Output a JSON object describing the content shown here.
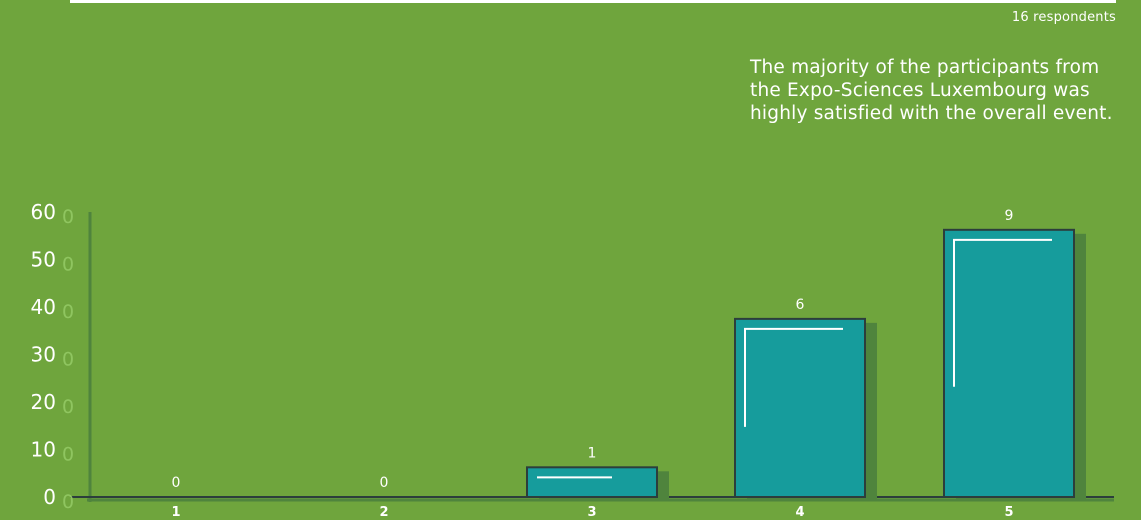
{
  "respondents": "16 respondents",
  "note": "The majority of the participants from the Expo-Sciences Luxembourg was highly satisfied with the overall event.",
  "colors": {
    "background": "#6fa53d",
    "bar": "#169c9c",
    "bar_shadow": "#4f843d",
    "outline": "#2c3e3c",
    "text": "#ffffff",
    "axis_tick_secondary": "#8fc560"
  },
  "chart_data": {
    "type": "bar",
    "categories": [
      "1",
      "2",
      "3",
      "4",
      "5"
    ],
    "values": [
      0,
      0,
      6.25,
      37.5,
      56.25
    ],
    "data_labels": [
      "0",
      "0",
      "1",
      "6",
      "9"
    ],
    "yticks": [
      "0",
      "10",
      "20",
      "30",
      "40",
      "50",
      "60"
    ],
    "ylim": [
      0,
      60
    ],
    "xlabel": "",
    "ylabel": "",
    "title": "",
    "grid": false,
    "legend": "none"
  }
}
